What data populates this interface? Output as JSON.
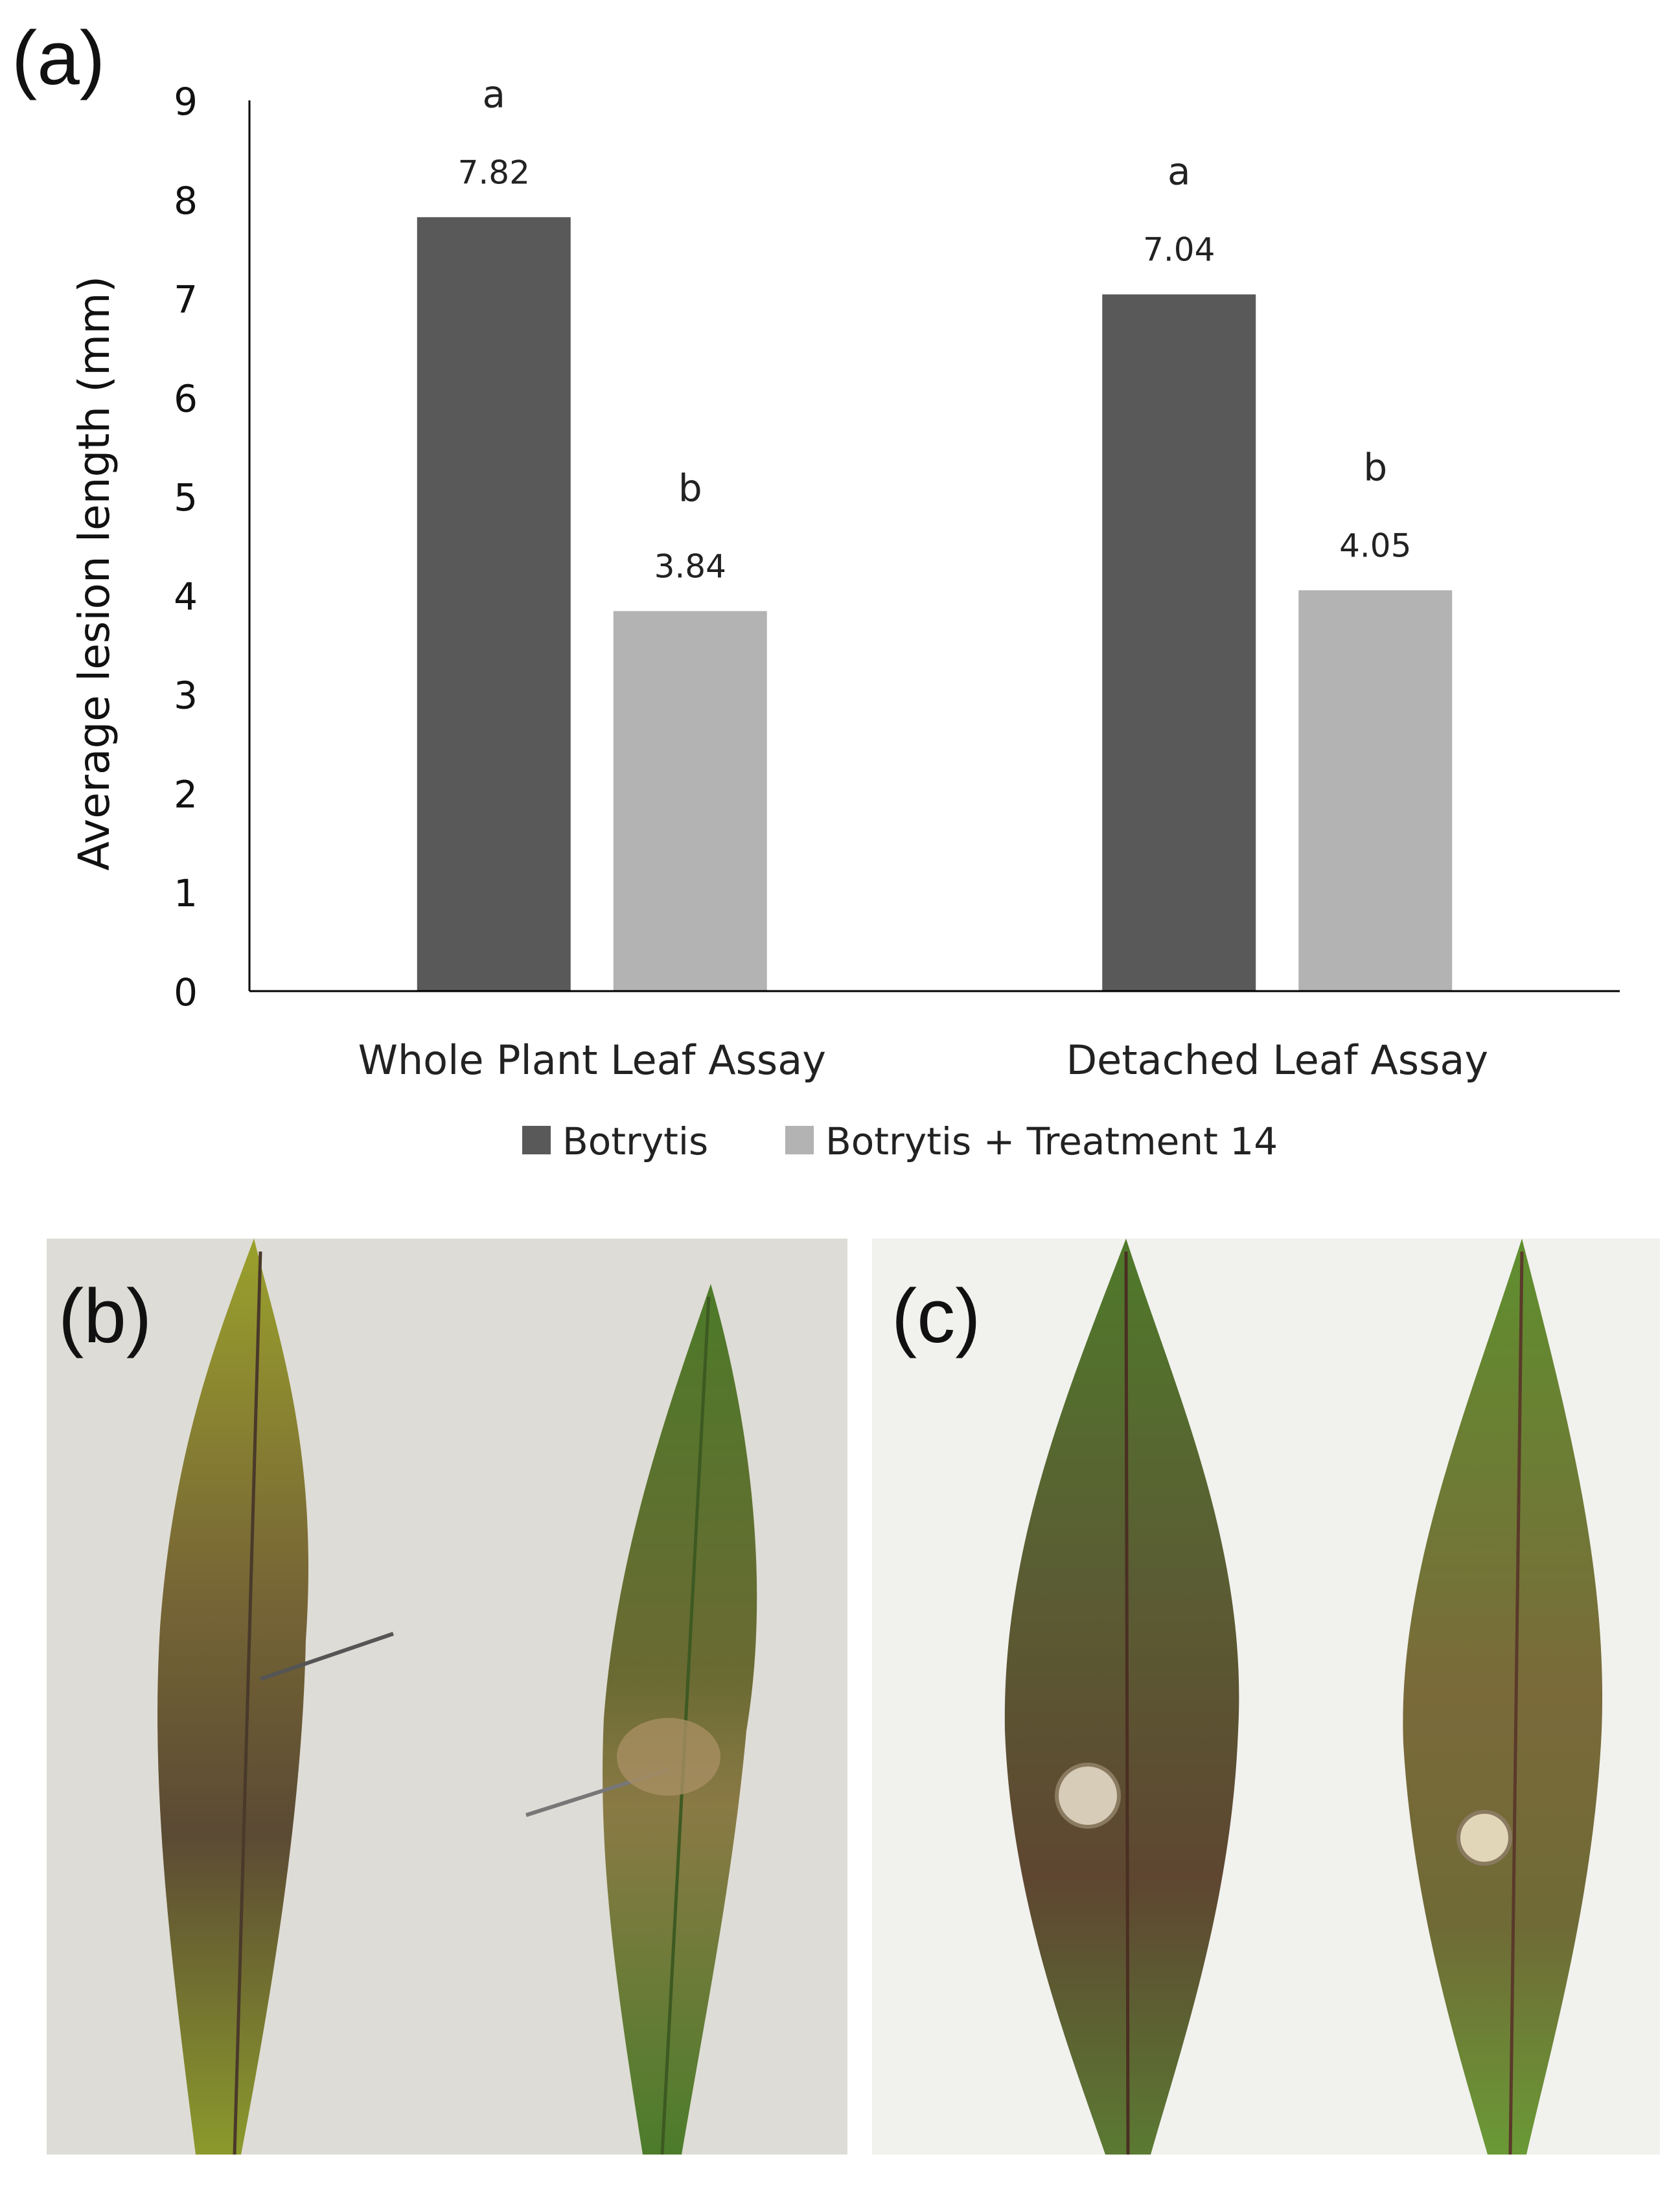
{
  "panel_labels": {
    "a": "(a)",
    "b": "(b)",
    "c": "(c)"
  },
  "chart_data": {
    "type": "bar",
    "title": "",
    "xlabel": "",
    "ylabel": "Average lesion length (mm)",
    "ylim": [
      0,
      9
    ],
    "yticks": [
      0,
      1,
      2,
      3,
      4,
      5,
      6,
      7,
      8,
      9
    ],
    "grid": false,
    "legend_position": "bottom",
    "categories": [
      "Whole Plant Leaf Assay",
      "Detached Leaf Assay"
    ],
    "series": [
      {
        "name": "Botrytis",
        "color": "#595959",
        "values": [
          7.82,
          7.04
        ],
        "value_labels": [
          "7.82",
          "7.04"
        ],
        "letters": [
          "a",
          "a"
        ]
      },
      {
        "name": "Botrytis + Treatment 14",
        "color": "#b3b3b3",
        "values": [
          3.84,
          4.05
        ],
        "value_labels": [
          "3.84",
          "4.05"
        ],
        "letters": [
          "b",
          "b"
        ]
      }
    ]
  },
  "photos": [
    {
      "panel": "b",
      "description_icon": "leaf-photo",
      "background": "#dcdbd6"
    },
    {
      "panel": "c",
      "description_icon": "leaf-photo",
      "background": "#efefec"
    }
  ],
  "colors": {
    "axis": "#000000",
    "text": "#222222",
    "leaf_green": "#4f7a2a",
    "lesion_brown": "#5e4631"
  }
}
